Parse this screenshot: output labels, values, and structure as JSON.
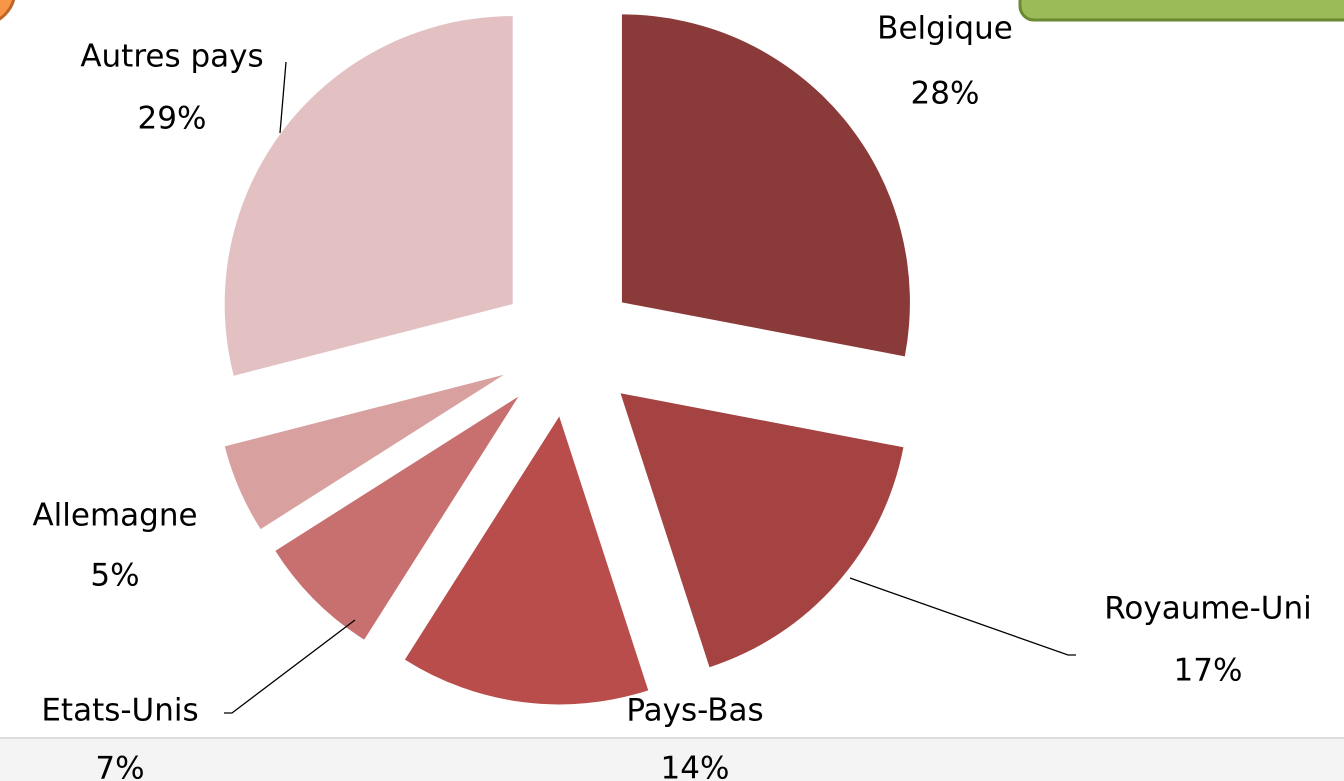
{
  "chart_data": {
    "type": "pie",
    "categories": [
      "Belgique",
      "Royaume-Uni",
      "Pays-Bas",
      "Etats-Unis",
      "Allemagne",
      "Autres pays"
    ],
    "values": [
      28,
      17,
      14,
      7,
      5,
      29
    ],
    "value_labels": [
      "28%",
      "17%",
      "14%",
      "7%",
      "5%",
      "29%"
    ],
    "colors": [
      "#8b3a3a",
      "#a54242",
      "#b84d4b",
      "#c87070",
      "#d9a0a0",
      "#e3c1c3"
    ]
  }
}
